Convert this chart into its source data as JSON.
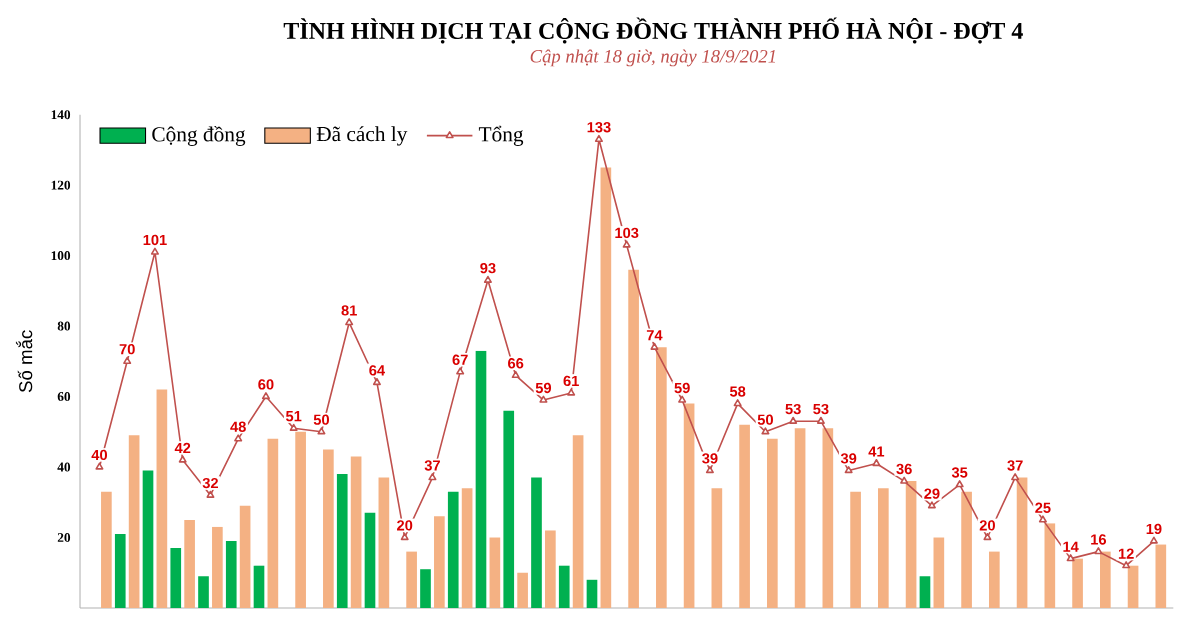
{
  "chart_data": {
    "type": "bar",
    "title": "TÌNH HÌNH DỊCH TẠI CỘNG ĐỒNG THÀNH PHỐ HÀ NỘI - ĐỢT 4",
    "subtitle": "Cập nhật 18 giờ, ngày 18/9/2021",
    "ylabel": "Số mắc",
    "categories": [
      null,
      null,
      null,
      null,
      null,
      null,
      null,
      null,
      null,
      null,
      null,
      null,
      null,
      null,
      null,
      null,
      null,
      null,
      null,
      null,
      null,
      null,
      null,
      null,
      null,
      null,
      null,
      null,
      null,
      null,
      null,
      null,
      null,
      null,
      null,
      null,
      null,
      null,
      null
    ],
    "series": [
      {
        "name": "Cộng đồng",
        "color": "#00b050",
        "values": [
          null,
          21,
          39,
          17,
          9,
          19,
          12,
          null,
          null,
          38,
          27,
          null,
          11,
          33,
          73,
          56,
          37,
          12,
          8,
          null,
          null,
          null,
          null,
          null,
          null,
          null,
          null,
          null,
          null,
          null,
          9,
          null,
          null,
          null,
          null,
          null,
          null,
          null,
          null
        ]
      },
      {
        "name": "Đã cách ly",
        "color": "#f4b183",
        "values": [
          33,
          49,
          62,
          25,
          23,
          29,
          48,
          50,
          45,
          43,
          37,
          16,
          26,
          34,
          20,
          10,
          22,
          49,
          125,
          96,
          74,
          58,
          34,
          52,
          48,
          51,
          51,
          33,
          34,
          36,
          20,
          33,
          16,
          37,
          24,
          14,
          16,
          12,
          18
        ]
      },
      {
        "name": "Tổng",
        "type": "line",
        "color": "#c0504d",
        "marker": "triangle",
        "values": [
          40,
          70,
          101,
          42,
          32,
          48,
          60,
          51,
          50,
          81,
          64,
          20,
          37,
          67,
          93,
          66,
          59,
          61,
          133,
          103,
          74,
          59,
          39,
          58,
          50,
          53,
          53,
          39,
          41,
          36,
          29,
          35,
          20,
          37,
          25,
          14,
          16,
          12,
          19
        ],
        "value_labels": [
          "40",
          "70",
          "101",
          "42",
          "32",
          "48",
          "60",
          "51",
          "50",
          "81",
          "64",
          "20",
          "37",
          "67",
          "93",
          "66",
          "59",
          "61",
          "133",
          "103",
          "74",
          "59",
          "39",
          "58",
          "50",
          "53",
          "53",
          "39",
          "41",
          "36",
          "29",
          "35",
          "20",
          "37",
          "25",
          "14",
          "16",
          "12",
          "19"
        ]
      }
    ],
    "ylim": [
      0,
      140
    ],
    "yticks": [
      20,
      40,
      60,
      80,
      100,
      120,
      140
    ],
    "legend": "top",
    "grid": false
  }
}
